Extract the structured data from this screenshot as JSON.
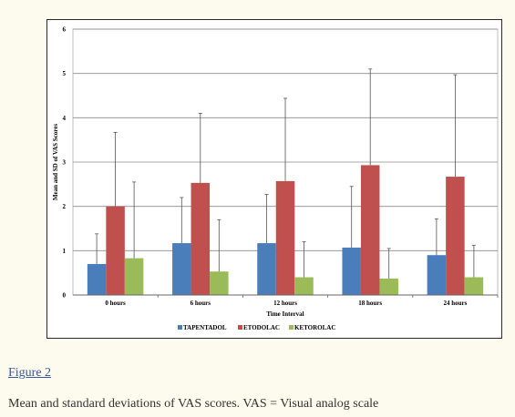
{
  "figure_link": "Figure 2",
  "caption": "Mean and standard deviations of VAS scores. VAS = Visual analog scale",
  "colors": {
    "series": [
      "#4a7ebb",
      "#c0504d",
      "#9bbb59"
    ],
    "errorbar": "#555555",
    "grid": "#8c8c8c"
  },
  "chart_data": {
    "type": "bar",
    "title": "",
    "xlabel": "Time Interval",
    "ylabel": "Mean and SD of VAS Scores",
    "ylim": [
      0,
      6
    ],
    "yticks": [
      "0",
      "1",
      "2",
      "3",
      "4",
      "5",
      "6"
    ],
    "grid": true,
    "legend_position": "bottom",
    "categories": [
      "0 hours",
      "6 hours",
      "12 hours",
      "18 hours",
      "24 hours"
    ],
    "series": [
      {
        "name": "TAPENTADOL",
        "values": [
          0.7,
          1.17,
          1.17,
          1.07,
          0.9
        ],
        "sd": [
          0.68,
          1.03,
          1.1,
          1.38,
          0.82
        ]
      },
      {
        "name": "ETODOLAC",
        "values": [
          2.0,
          2.53,
          2.57,
          2.93,
          2.67
        ],
        "sd": [
          1.67,
          1.57,
          1.87,
          2.17,
          2.3
        ]
      },
      {
        "name": "KETOROLAC",
        "values": [
          0.83,
          0.53,
          0.4,
          0.37,
          0.4
        ],
        "sd": [
          1.72,
          1.17,
          0.8,
          0.68,
          0.72
        ]
      }
    ]
  }
}
